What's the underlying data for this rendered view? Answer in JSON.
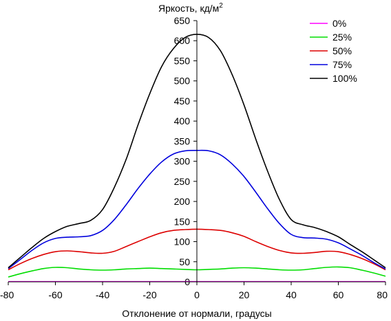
{
  "chart_data": {
    "type": "line",
    "ylabel": "Яркость, кд/м",
    "ylabel_sup": "2",
    "xlabel": "Отклонение от нормали, градусы",
    "xlim": [
      -80,
      80
    ],
    "ylim": [
      0,
      650
    ],
    "x_ticks": [
      "-80",
      "-60",
      "-40",
      "-20",
      "0",
      "20",
      "40",
      "60",
      "80"
    ],
    "y_ticks": [
      "0",
      "50",
      "100",
      "150",
      "200",
      "250",
      "300",
      "350",
      "400",
      "450",
      "500",
      "550",
      "600",
      "650"
    ],
    "legend_position": "top-right",
    "x": [
      -80,
      -75,
      -70,
      -65,
      -60,
      -55,
      -50,
      -45,
      -40,
      -35,
      -30,
      -25,
      -20,
      -15,
      -10,
      -5,
      0,
      5,
      10,
      15,
      20,
      25,
      30,
      35,
      40,
      45,
      50,
      55,
      60,
      65,
      70,
      75,
      80
    ],
    "series": [
      {
        "name": "0%",
        "color": "#ff00ff",
        "values": [
          0.5,
          0.5,
          0.5,
          0.5,
          0.5,
          0.5,
          0.5,
          0.5,
          0.5,
          0.5,
          0.5,
          0.5,
          0.5,
          0.5,
          0.5,
          0.5,
          0.5,
          0.5,
          0.5,
          0.5,
          0.5,
          0.5,
          0.5,
          0.5,
          0.5,
          0.5,
          0.5,
          0.5,
          0.5,
          0.5,
          0.5,
          0.5,
          0.5
        ]
      },
      {
        "name": "25%",
        "color": "#00dd00",
        "values": [
          12,
          20,
          27,
          33,
          36,
          35,
          32,
          30,
          29,
          30,
          32,
          33,
          34,
          33,
          32,
          31,
          30,
          31,
          32,
          34,
          35,
          34,
          32,
          30,
          29,
          30,
          33,
          36,
          37,
          35,
          29,
          22,
          14
        ]
      },
      {
        "name": "50%",
        "color": "#dd0000",
        "values": [
          30,
          45,
          58,
          68,
          75,
          77,
          75,
          72,
          71,
          76,
          88,
          100,
          112,
          122,
          128,
          130,
          131,
          130,
          128,
          122,
          113,
          100,
          88,
          78,
          72,
          71,
          73,
          76,
          75,
          68,
          58,
          45,
          30
        ]
      },
      {
        "name": "75%",
        "color": "#0000dd",
        "values": [
          33,
          55,
          78,
          97,
          108,
          111,
          112,
          115,
          128,
          155,
          192,
          232,
          268,
          298,
          318,
          326,
          327,
          326,
          316,
          293,
          262,
          223,
          182,
          145,
          118,
          110,
          109,
          106,
          97,
          82,
          66,
          48,
          32
        ]
      },
      {
        "name": "100%",
        "color": "#000000",
        "values": [
          35,
          60,
          85,
          108,
          125,
          138,
          145,
          153,
          180,
          235,
          305,
          390,
          468,
          535,
          580,
          608,
          616,
          608,
          575,
          515,
          440,
          355,
          275,
          205,
          155,
          142,
          135,
          125,
          112,
          93,
          75,
          55,
          35
        ]
      }
    ]
  }
}
